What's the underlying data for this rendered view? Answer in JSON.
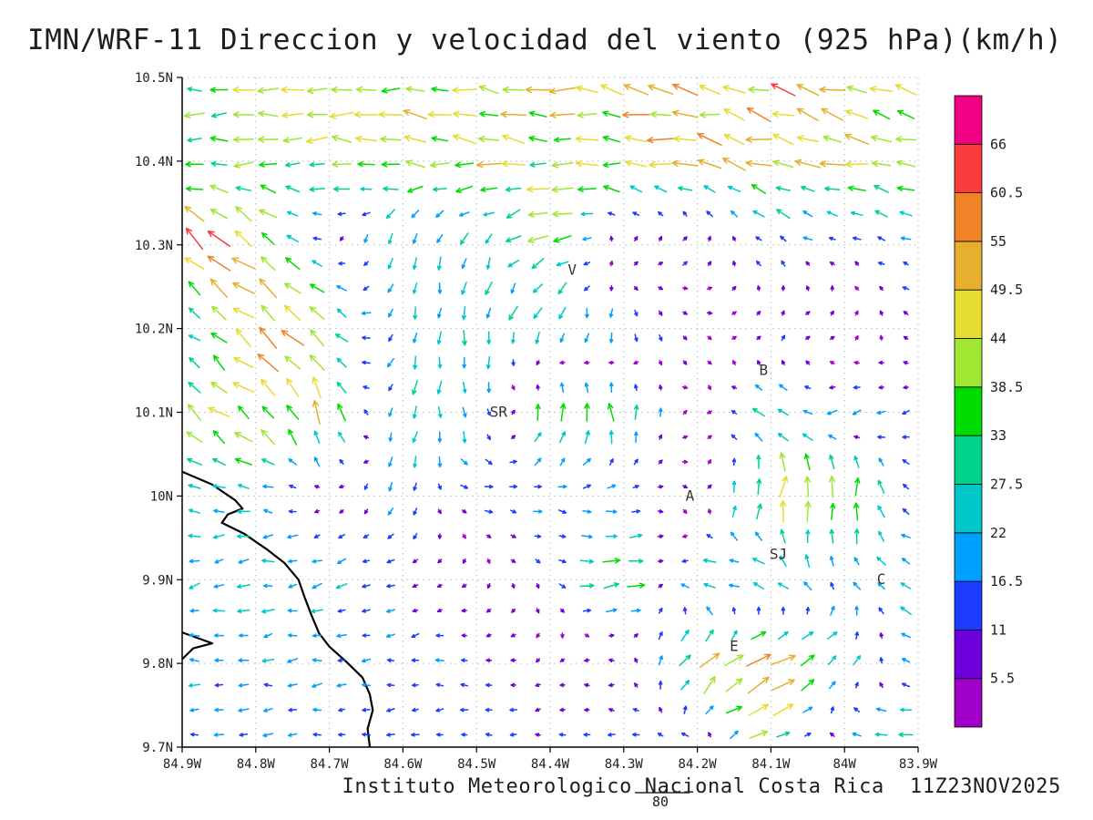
{
  "title": "IMN/WRF-11 Direccion y velocidad del viento (925 hPa)(km/h)",
  "footer": {
    "institution": "Instituto Meteorologico Nacional Costa Rica",
    "datetime": "11Z23NOV2025",
    "contour_label": "80"
  },
  "chart_data": {
    "type": "vector_field",
    "title": "IMN/WRF-11 Direccion y velocidad del viento (925 hPa)(km/h)",
    "variable": "Direccion y velocidad del viento",
    "level": "925 hPa",
    "units": "km/h",
    "grid": true,
    "x_axis": {
      "min": -84.9,
      "max": -83.9,
      "tick_labels": [
        "84.9W",
        "84.8W",
        "84.7W",
        "84.6W",
        "84.5W",
        "84.4W",
        "84.3W",
        "84.2W",
        "84.1W",
        "84W",
        "83.9W"
      ]
    },
    "y_axis": {
      "min": 9.7,
      "max": 10.5,
      "tick_labels": [
        "10.5N",
        "10.4N",
        "10.3N",
        "10.2N",
        "10.1N",
        "10N",
        "9.9N",
        "9.8N",
        "9.7N"
      ]
    },
    "colorbar": {
      "position": "right",
      "levels": [
        5.5,
        11,
        16.5,
        22,
        27.5,
        33,
        38.5,
        44,
        49.5,
        55,
        60.5,
        66
      ],
      "colors": [
        "#A000C8",
        "#6E00DC",
        "#1E3CFF",
        "#00A0FF",
        "#00C8C8",
        "#00D28C",
        "#00DC00",
        "#A0E632",
        "#E6DC32",
        "#E6AF2D",
        "#F08228",
        "#FA3C3C",
        "#F00082"
      ]
    },
    "stations": [
      {
        "label": "V",
        "lon": -84.37,
        "lat": 10.27
      },
      {
        "label": "B",
        "lon": -84.11,
        "lat": 10.15
      },
      {
        "label": "SR",
        "lon": -84.47,
        "lat": 10.1
      },
      {
        "label": "A",
        "lon": -84.21,
        "lat": 10.0
      },
      {
        "label": "SJ",
        "lon": -84.09,
        "lat": 9.93
      },
      {
        "label": "C",
        "lon": -83.95,
        "lat": 9.9
      },
      {
        "label": "E",
        "lon": -84.15,
        "lat": 9.82
      }
    ],
    "coastline": [
      [
        -84.9,
        10.029
      ],
      [
        -84.86,
        10.014
      ],
      [
        -84.828,
        9.995
      ],
      [
        -84.818,
        9.985
      ],
      [
        -84.838,
        9.978
      ],
      [
        -84.846,
        9.968
      ],
      [
        -84.816,
        9.955
      ],
      [
        -84.786,
        9.937
      ],
      [
        -84.761,
        9.92
      ],
      [
        -84.742,
        9.9
      ],
      [
        -84.734,
        9.88
      ],
      [
        -84.724,
        9.857
      ],
      [
        -84.714,
        9.836
      ],
      [
        -84.7,
        9.82
      ],
      [
        -84.677,
        9.802
      ],
      [
        -84.655,
        9.783
      ],
      [
        -84.645,
        9.763
      ],
      [
        -84.641,
        9.744
      ],
      [
        -84.648,
        9.722
      ],
      [
        -84.645,
        9.7
      ]
    ],
    "coastline_peninsula": [
      [
        -84.9,
        9.837
      ],
      [
        -84.859,
        9.824
      ],
      [
        -84.885,
        9.818
      ],
      [
        -84.9,
        9.805
      ]
    ],
    "wind_grid": {
      "comment_u_positive": "east",
      "comment_v_positive": "north",
      "lons": [
        -84.9,
        -84.8,
        -84.7,
        -84.6,
        -84.5,
        -84.4,
        -84.3,
        -84.2,
        -84.1,
        -84.0,
        -83.9
      ],
      "lats": [
        10.5,
        10.4,
        10.3,
        10.2,
        10.1,
        10.0,
        9.9,
        9.8,
        9.7
      ],
      "u": [
        [
          -38,
          -40,
          -42,
          -44,
          -45,
          -46,
          -48,
          -50,
          -52,
          -50,
          -48
        ],
        [
          -34,
          -36,
          -38,
          -40,
          -42,
          -42,
          -44,
          -46,
          -46,
          -44,
          -42
        ],
        [
          -48,
          -38,
          -6,
          -4,
          -6,
          -40,
          8,
          10,
          -14,
          -10,
          -16
        ],
        [
          -20,
          -40,
          -36,
          -6,
          -4,
          -8,
          2,
          4,
          10,
          8,
          -8
        ],
        [
          -32,
          -34,
          -10,
          -6,
          6,
          4,
          -6,
          4,
          -28,
          -18,
          -10
        ],
        [
          -22,
          -24,
          -5,
          -4,
          16,
          18,
          16,
          5,
          6,
          2,
          -16
        ],
        [
          -20,
          -22,
          -20,
          -12,
          -5,
          8,
          45,
          -30,
          -24,
          -8,
          -28
        ],
        [
          -20,
          -20,
          -18,
          -14,
          -14,
          -5,
          -12,
          30,
          50,
          20,
          -20
        ],
        [
          -18,
          -18,
          -15,
          -14,
          -14,
          -12,
          -16,
          -18,
          40,
          -26,
          -30
        ]
      ],
      "v": [
        [
          2,
          2,
          3,
          3,
          4,
          5,
          8,
          12,
          14,
          12,
          10
        ],
        [
          0,
          1,
          2,
          2,
          3,
          4,
          6,
          10,
          12,
          10,
          8
        ],
        [
          38,
          30,
          -4,
          -22,
          -24,
          -8,
          10,
          8,
          10,
          6,
          4
        ],
        [
          14,
          32,
          28,
          -24,
          -26,
          -30,
          -22,
          -5,
          8,
          5,
          6
        ],
        [
          28,
          26,
          42,
          -28,
          -26,
          40,
          34,
          -4,
          14,
          -8,
          -5
        ],
        [
          2,
          4,
          -3,
          -22,
          0,
          -2,
          2,
          -4,
          48,
          44,
          10
        ],
        [
          -6,
          -4,
          -5,
          -4,
          -5,
          -8,
          4,
          2,
          10,
          16,
          6
        ],
        [
          0,
          -2,
          -3,
          -2,
          0,
          -4,
          2,
          38,
          20,
          18,
          8
        ],
        [
          2,
          0,
          0,
          0,
          2,
          0,
          2,
          4,
          12,
          4,
          2
        ]
      ]
    }
  }
}
